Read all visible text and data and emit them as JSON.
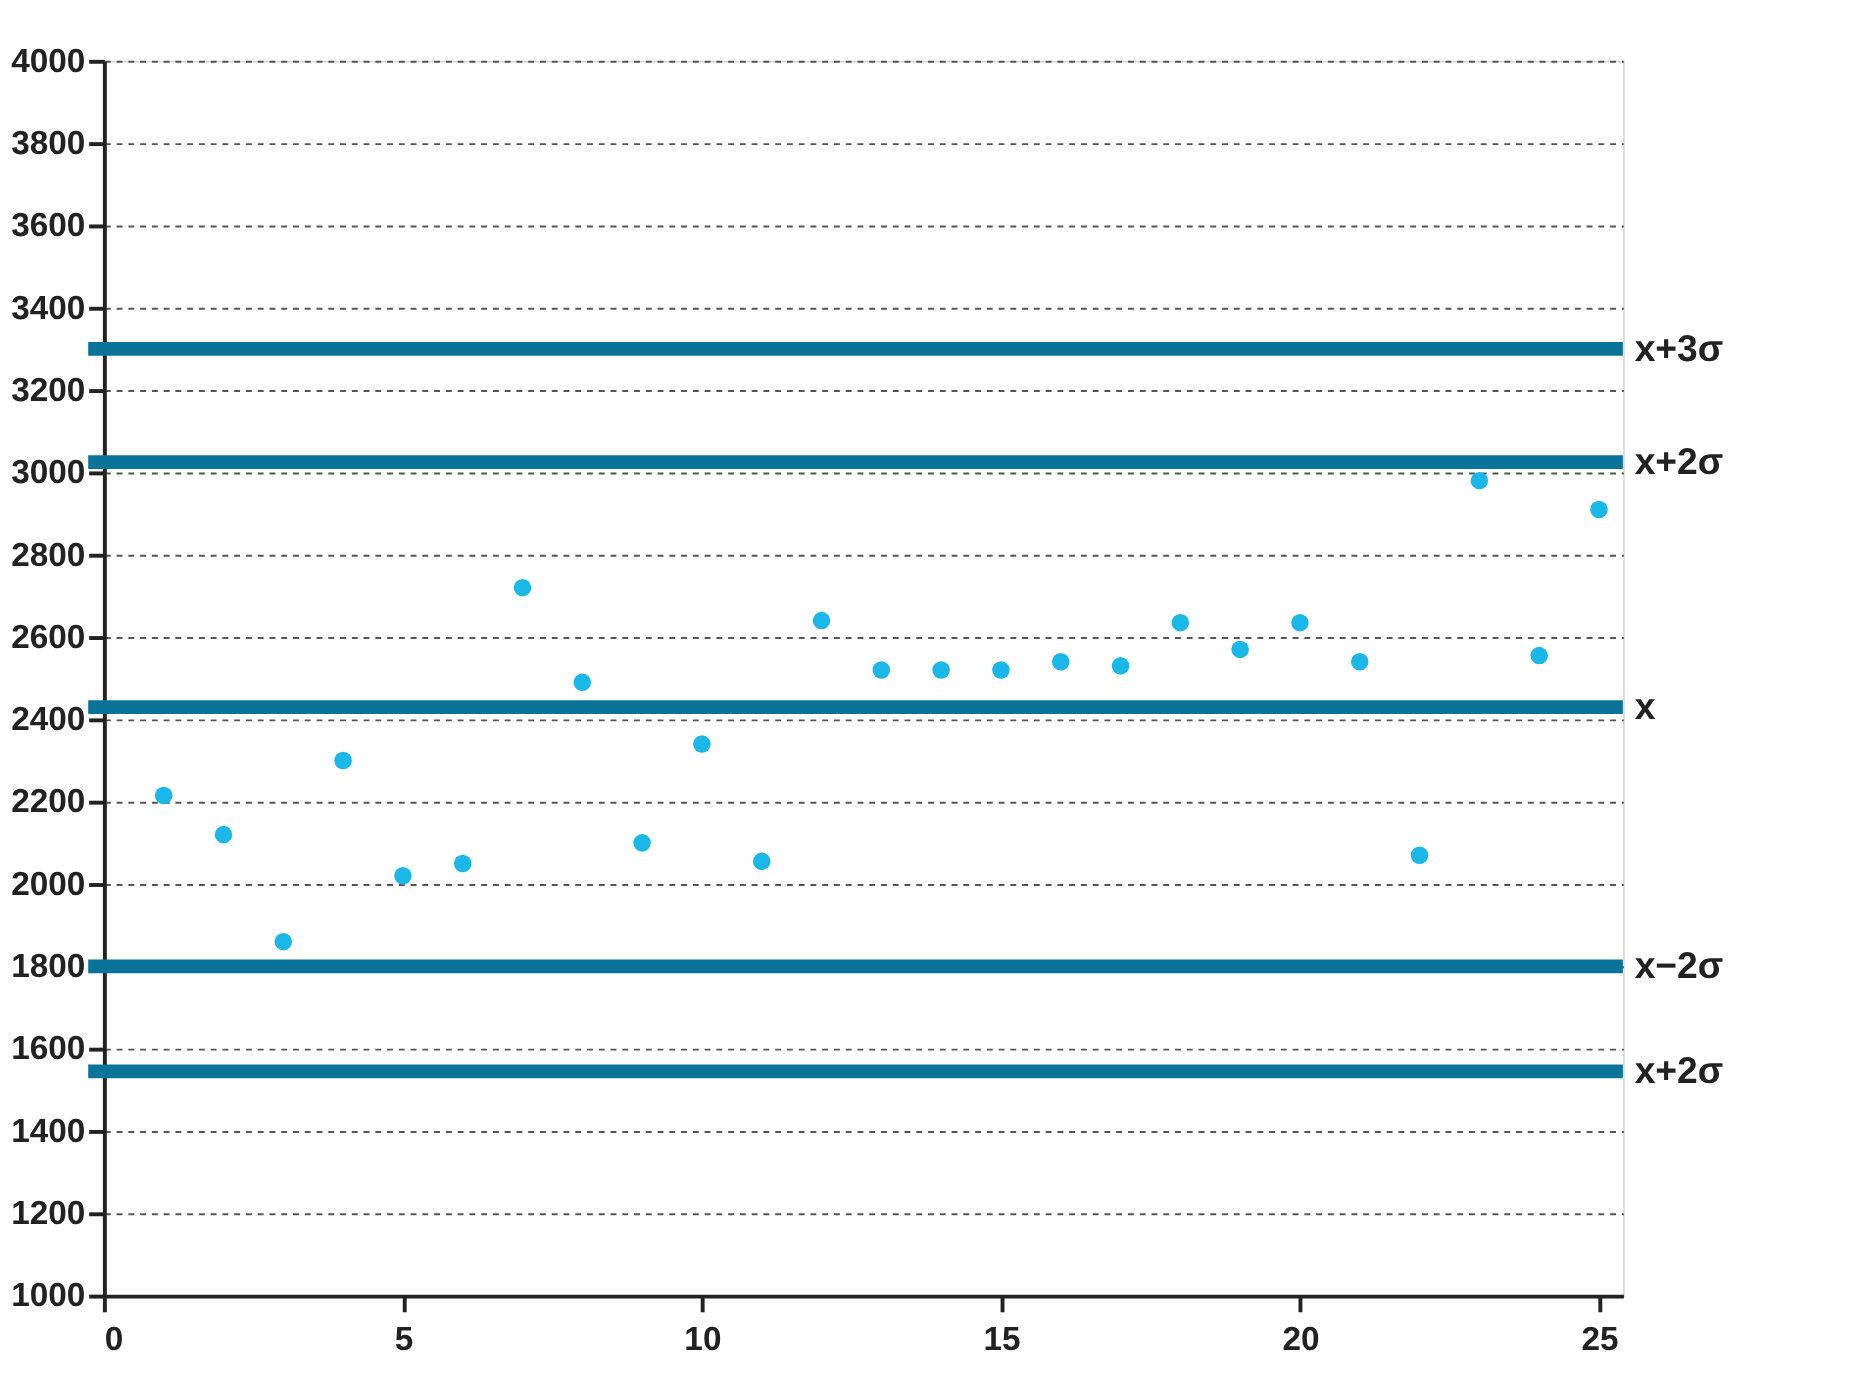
{
  "chart_data": {
    "type": "scatter",
    "x": [
      1,
      2,
      3,
      4,
      5,
      6,
      7,
      8,
      9,
      10,
      11,
      12,
      13,
      14,
      15,
      16,
      17,
      18,
      19,
      20,
      21,
      22,
      23,
      24,
      25
    ],
    "series": [
      {
        "color": "#1ab8e8",
        "values": [
          2215,
          2120,
          1860,
          2300,
          2020,
          2050,
          2720,
          2490,
          2100,
          2340,
          2055,
          2640,
          2520,
          2520,
          2520,
          2540,
          2530,
          2635,
          2570,
          2635,
          2540,
          2070,
          2980,
          2555,
          2910
        ]
      }
    ],
    "xlim": [
      0,
      25.4
    ],
    "xticks": [
      0,
      5,
      10,
      15,
      20,
      25
    ],
    "ylim": [
      1000,
      4000
    ],
    "yticks": [
      1000,
      1200,
      1400,
      1600,
      1800,
      2000,
      2200,
      2400,
      2600,
      2800,
      3000,
      3200,
      3400,
      3600,
      3800,
      4000
    ],
    "grid": "y",
    "marker": "circle",
    "ref_lines": [
      {
        "axis": "y",
        "value": 3300,
        "label": "x+3σ",
        "color": "#0a7399"
      },
      {
        "axis": "y",
        "value": 3025,
        "label": "x+2σ",
        "color": "#0a7399"
      },
      {
        "axis": "y",
        "value": 2430,
        "label": "x",
        "color": "#0a7399"
      },
      {
        "axis": "y",
        "value": 1800,
        "label": "x−2σ",
        "color": "#0a7399"
      },
      {
        "axis": "y",
        "value": 1545,
        "label": "x+2σ",
        "color": "#0a7399"
      }
    ]
  }
}
